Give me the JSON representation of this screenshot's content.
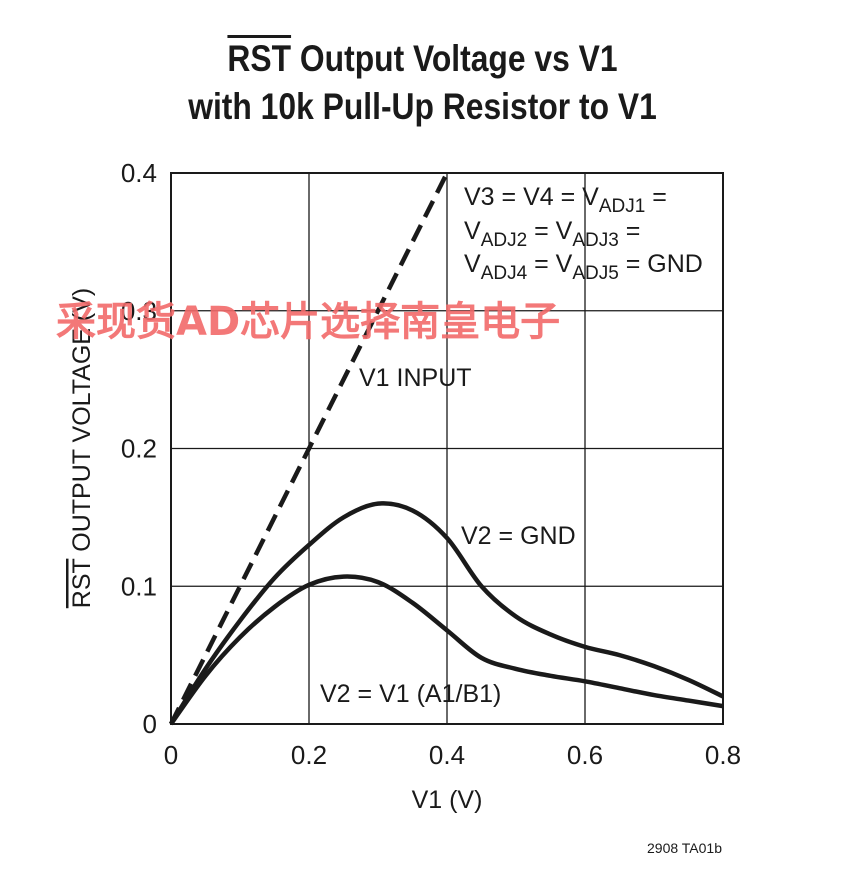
{
  "chart_data": {
    "type": "line",
    "title_prefix": "RST",
    "title_line1_rest": " Output Voltage vs V1",
    "title_line2": "with 10k Pull-Up Resistor to V1",
    "xlabel": "V1 (V)",
    "ylabel_prefix": "RST",
    "ylabel_rest": " OUTPUT VOLTAGE (V)",
    "xlim": [
      0,
      0.8
    ],
    "ylim": [
      0,
      0.4
    ],
    "x_ticks": [
      "0",
      "0.2",
      "0.4",
      "0.6",
      "0.8"
    ],
    "y_ticks": [
      "0",
      "0.1",
      "0.2",
      "0.3",
      "0.4"
    ],
    "grid": true,
    "series": [
      {
        "name": "V1 INPUT",
        "style": "dashed",
        "x": [
          0,
          0.4
        ],
        "y": [
          0,
          0.4
        ]
      },
      {
        "name": "V2 = GND",
        "style": "solid",
        "x": [
          0,
          0.05,
          0.1,
          0.15,
          0.2,
          0.25,
          0.3,
          0.35,
          0.4,
          0.45,
          0.5,
          0.55,
          0.6,
          0.65,
          0.7,
          0.75,
          0.8
        ],
        "y": [
          0,
          0.04,
          0.075,
          0.106,
          0.13,
          0.15,
          0.16,
          0.155,
          0.135,
          0.1,
          0.078,
          0.065,
          0.056,
          0.05,
          0.042,
          0.032,
          0.02
        ]
      },
      {
        "name": "V2 = V1 (A1/B1)",
        "style": "solid",
        "x": [
          0,
          0.05,
          0.1,
          0.15,
          0.2,
          0.25,
          0.3,
          0.35,
          0.4,
          0.45,
          0.5,
          0.55,
          0.6,
          0.65,
          0.7,
          0.75,
          0.8
        ],
        "y": [
          0,
          0.035,
          0.063,
          0.085,
          0.101,
          0.107,
          0.103,
          0.088,
          0.068,
          0.048,
          0.04,
          0.035,
          0.031,
          0.026,
          0.021,
          0.017,
          0.013
        ]
      }
    ],
    "annotations": {
      "v1_input": "V1 INPUT",
      "v2_gnd": "V2 = GND",
      "v2_v1": "V2 = V1 (A1/B1)",
      "adj_line1_a": "V3 = V4 = V",
      "adj_line1_sub": "ADJ1",
      "adj_line1_b": " =",
      "adj_line2_a": "V",
      "adj_line2_sub1": "ADJ2",
      "adj_line2_b": " = V",
      "adj_line2_sub2": "ADJ3",
      "adj_line2_c": " =",
      "adj_line3_a": "V",
      "adj_line3_sub1": "ADJ4",
      "adj_line3_b": " = V",
      "adj_line3_sub2": "ADJ5",
      "adj_line3_c": " = GND"
    },
    "figure_id": "2908 TA01b"
  },
  "watermark": "采现货AD芯片选择南皇电子",
  "colors": {
    "ink": "#1a1a1a",
    "watermark": "#f26a6a"
  }
}
